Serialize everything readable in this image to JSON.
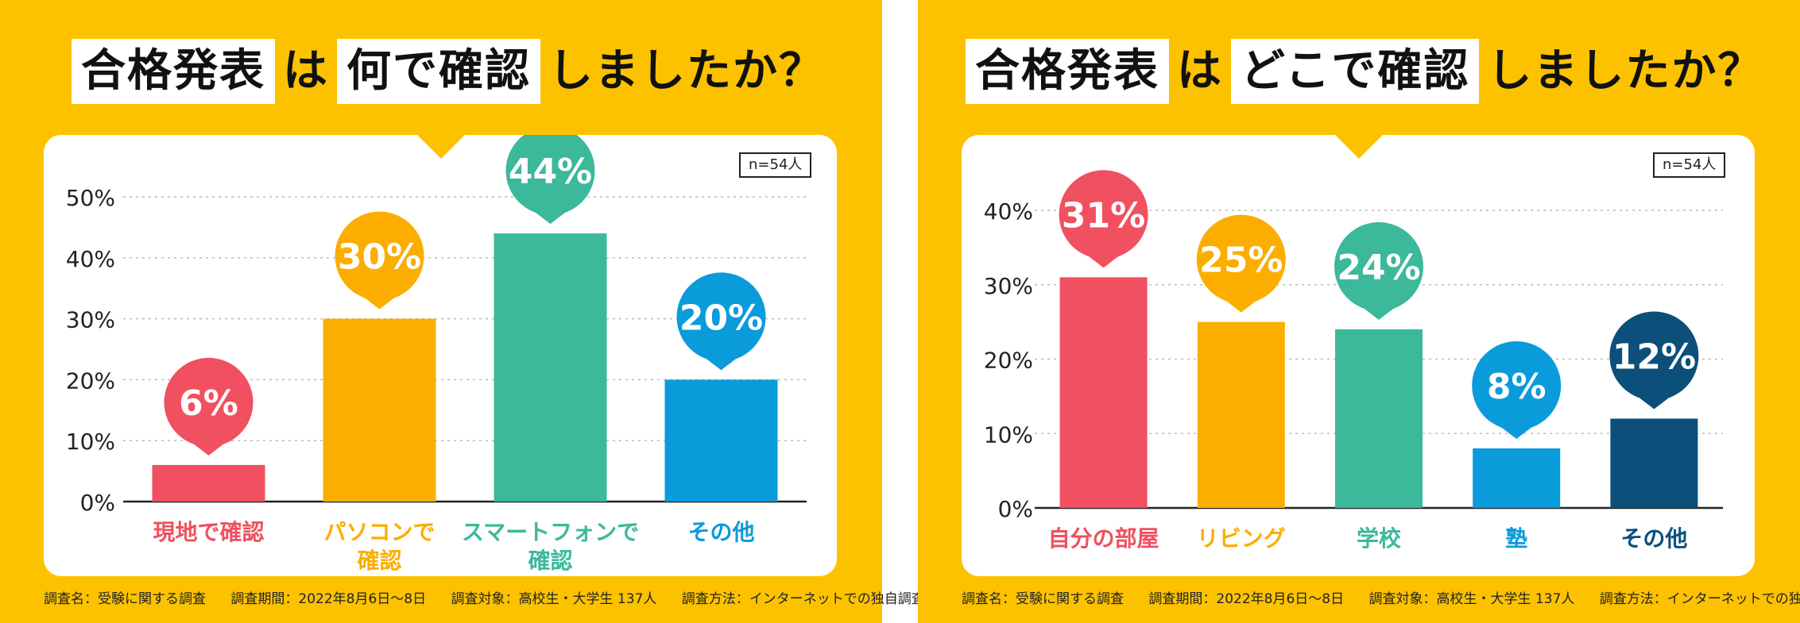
{
  "left": {
    "title_parts": [
      {
        "text": "合格発表",
        "hl": true
      },
      {
        "text": "は",
        "hl": false
      },
      {
        "text": "何で確認",
        "hl": true
      },
      {
        "text": "しましたか？",
        "hl": false
      }
    ],
    "n_label": "n=54人",
    "footer": {
      "survey_name": "調査名：受験に関する調査",
      "survey_period": "調査期間：2022年8月6日〜8日",
      "survey_target": "調査対象：高校生・大学生 137人",
      "survey_method": "調査方法：インターネットでの独自調査"
    }
  },
  "right": {
    "title_parts": [
      {
        "text": "合格発表",
        "hl": true
      },
      {
        "text": "は",
        "hl": false
      },
      {
        "text": "どこで確認",
        "hl": true
      },
      {
        "text": "しましたか？",
        "hl": false
      }
    ],
    "n_label": "n=54人",
    "footer": {
      "survey_name": "調査名：受験に関する調査",
      "survey_period": "調査期間：2022年8月6日〜8日",
      "survey_target": "調査対象：高校生・大学生 137人",
      "survey_method": "調査方法：インターネットでの独自調査"
    }
  },
  "chart_data": [
    {
      "type": "bar",
      "title": "合格発表は何で確認しましたか？",
      "categories": [
        "現地で確認",
        "パソコンで\n確認",
        "スマートフォンで\n確認",
        "その他"
      ],
      "values": [
        6,
        30,
        44,
        20
      ],
      "value_labels": [
        "6%",
        "30%",
        "44%",
        "20%"
      ],
      "colors": [
        "#F0505F",
        "#FBAE00",
        "#3BB99A",
        "#0A9BDB"
      ],
      "yticks": [
        "0%",
        "10%",
        "20%",
        "30%",
        "40%",
        "50%"
      ],
      "ylim": [
        0,
        50
      ],
      "grid": true
    },
    {
      "type": "bar",
      "title": "合格発表はどこで確認しましたか？",
      "categories": [
        "自分の部屋",
        "リビング",
        "学校",
        "塾",
        "その他"
      ],
      "values": [
        31,
        25,
        24,
        8,
        12
      ],
      "value_labels": [
        "31%",
        "25%",
        "24%",
        "8%",
        "12%"
      ],
      "colors": [
        "#F0505F",
        "#FBAE00",
        "#3BB99A",
        "#0A9BDB",
        "#0B4F7A"
      ],
      "yticks": [
        "0%",
        "10%",
        "20%",
        "30%",
        "40%"
      ],
      "ylim": [
        0,
        40
      ],
      "grid": true
    }
  ]
}
